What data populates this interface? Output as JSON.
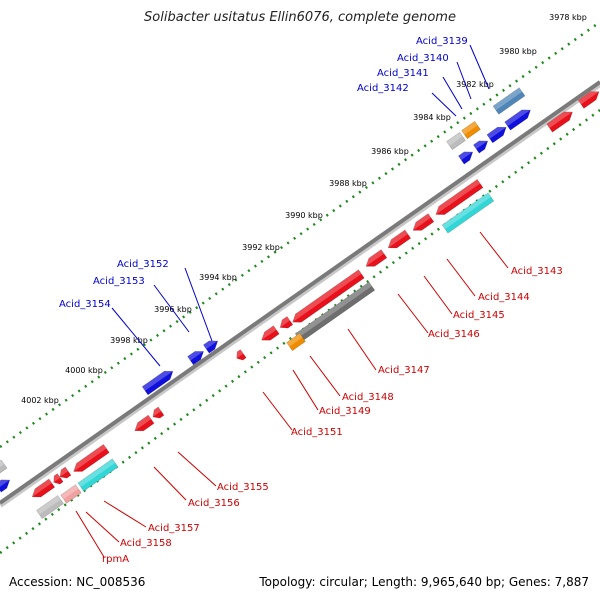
{
  "title": "Solibacter usitatus Ellin6076, complete genome",
  "footer": {
    "accession": "Accession: NC_008536",
    "topology": "Topology: circular; Length: 9,965,640 bp; Genes: 7,887"
  },
  "colors": {
    "backbone": "#7a7a7a",
    "tick": "#1e8a1e",
    "plus_gene": "#1010dd",
    "minus_gene": "#e8101a",
    "rna_gene": "#33d6d6",
    "pseudo_gene": "#6e6e6e",
    "orange_gene": "#f08c00",
    "steel_gene": "#4f86b8",
    "light_gene": "#bcbcbc",
    "pink_gene": "#f0a0a0",
    "plus_label": "#0000cc",
    "minus_label": "#cc0000"
  },
  "ticks": [
    {
      "label": "3978 kbp"
    },
    {
      "label": "3980 kbp"
    },
    {
      "label": "3982 kbp"
    },
    {
      "label": "3984 kbp"
    },
    {
      "label": "3986 kbp"
    },
    {
      "label": "3988 kbp"
    },
    {
      "label": "3990 kbp"
    },
    {
      "label": "3992 kbp"
    },
    {
      "label": "3994 kbp"
    },
    {
      "label": "3996 kbp"
    },
    {
      "label": "3998 kbp"
    },
    {
      "label": "4000 kbp"
    },
    {
      "label": "4002 kbp"
    }
  ],
  "plus_labels": [
    "Acid_3139",
    "Acid_3140",
    "Acid_3141",
    "Acid_3142",
    "Acid_3152",
    "Acid_3153",
    "Acid_3154"
  ],
  "minus_labels": [
    "Acid_3143",
    "Acid_3144",
    "Acid_3145",
    "Acid_3146",
    "Acid_3147",
    "Acid_3148",
    "Acid_3149",
    "Acid_3151",
    "Acid_3155",
    "Acid_3156",
    "Acid_3157",
    "Acid_3158",
    "rpmA"
  ]
}
